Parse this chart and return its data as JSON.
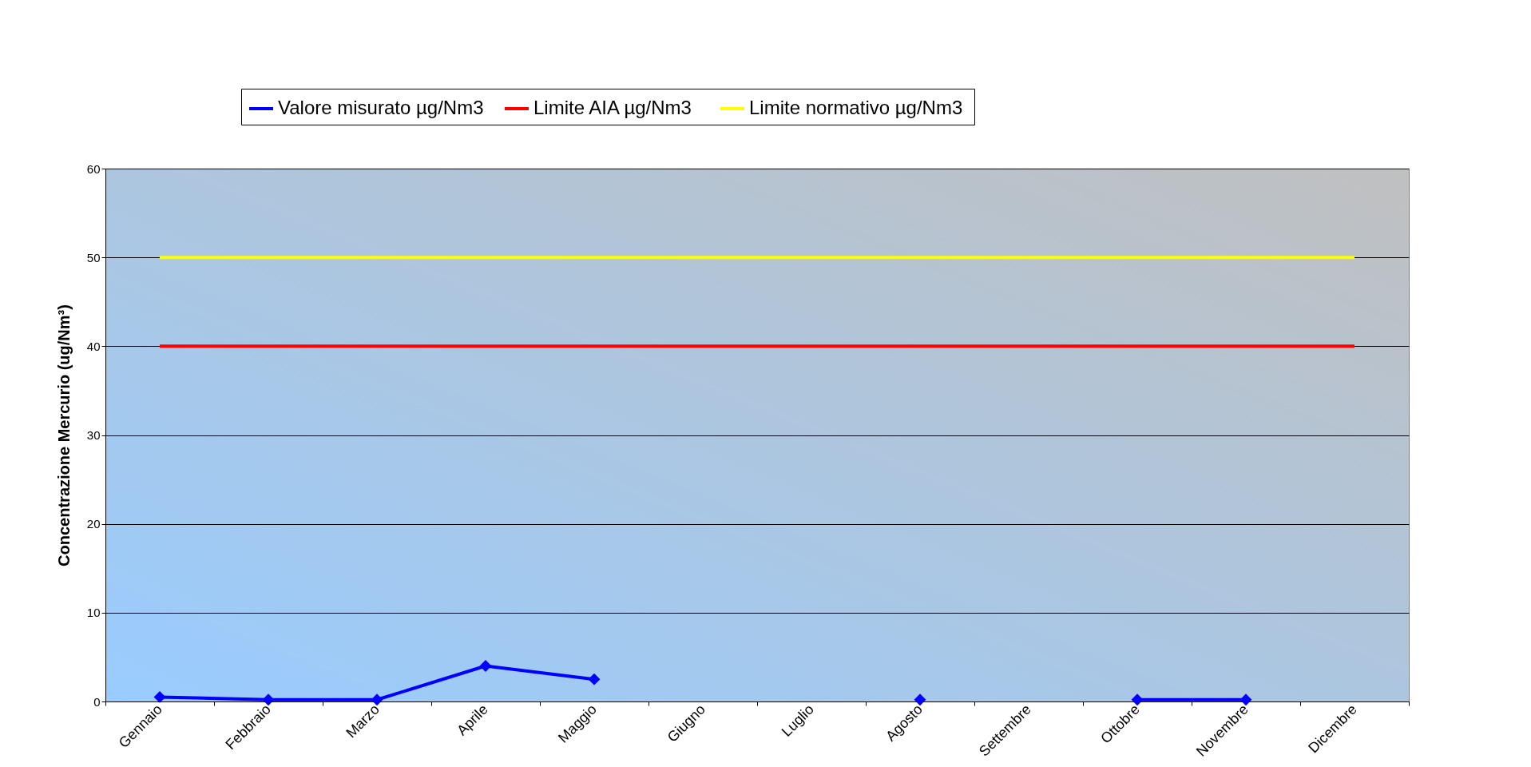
{
  "chart_data": {
    "type": "line",
    "ylabel": "Concentrazione Mercurio (ug/Nm³)",
    "categories": [
      "Gennaio",
      "Febbraio",
      "Marzo",
      "Aprile",
      "Maggio",
      "Giugno",
      "Luglio",
      "Agosto",
      "Settembre",
      "Ottobre",
      "Novembre",
      "Dicembre"
    ],
    "series": [
      {
        "name": "Valore misurato µg/Nm3",
        "color": "#0000ff",
        "marker": "diamond",
        "values": [
          0.5,
          0.2,
          0.2,
          4,
          2.5,
          null,
          null,
          0.2,
          null,
          0.2,
          0.2,
          null
        ]
      },
      {
        "name": "Limite AIA  µg/Nm3",
        "color": "#ff0000",
        "marker": "none",
        "values": [
          40,
          40,
          40,
          40,
          40,
          40,
          40,
          40,
          40,
          40,
          40,
          40
        ]
      },
      {
        "name": "Limite normativo  µg/Nm3",
        "color": "#ffff00",
        "marker": "none",
        "values": [
          50,
          50,
          50,
          50,
          50,
          50,
          50,
          50,
          50,
          50,
          50,
          50
        ]
      }
    ],
    "ylim": [
      0,
      60
    ],
    "yticks": [
      0,
      10,
      20,
      30,
      40,
      50,
      60
    ],
    "grid": "y",
    "legend": "top"
  }
}
